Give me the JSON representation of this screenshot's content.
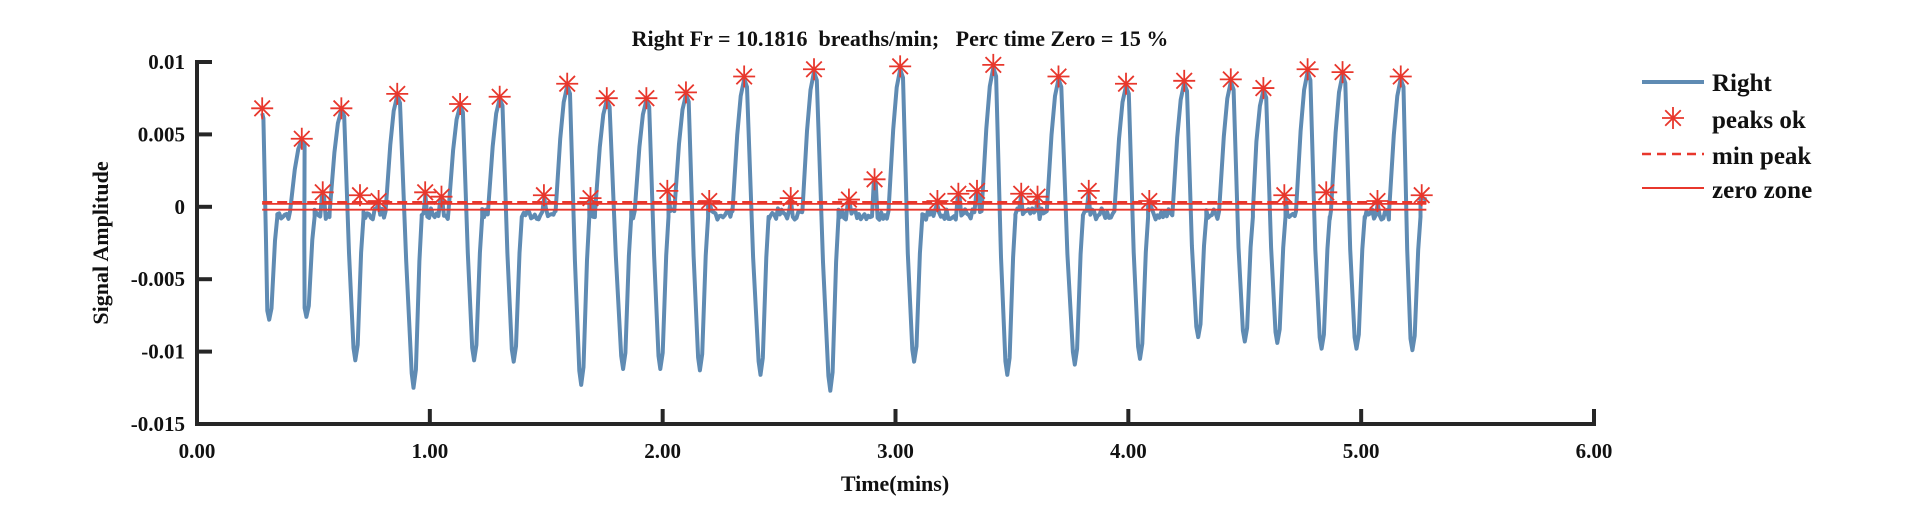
{
  "chart_data": {
    "type": "line",
    "title": "Right Fr = 10.1816  breaths/min;   Perc time Zero = 15 %",
    "xlabel": "Time(mins)",
    "ylabel": "Signal Amplitude",
    "xlim": [
      0,
      6
    ],
    "ylim": [
      -0.015,
      0.01
    ],
    "xticks": [
      0,
      1,
      2,
      3,
      4,
      5,
      6
    ],
    "xtick_labels": [
      "0.00",
      "1.00",
      "2.00",
      "3.00",
      "4.00",
      "5.00",
      "6.00"
    ],
    "yticks": [
      0.01,
      0.005,
      0,
      -0.005,
      -0.01,
      -0.015
    ],
    "ytick_labels": [
      "0.01",
      "0.005",
      "0",
      "-0.005",
      "-0.01",
      "-0.015"
    ],
    "grid": false,
    "legend_position": "outside-right-top",
    "legend": [
      "Right",
      "peaks ok",
      "min peak",
      "zero zone"
    ],
    "colors": {
      "signal": "#5f8bb3",
      "peaks": "#e8372c",
      "min_peak": "#e8372c",
      "zero_zone": "#e8372c",
      "axis": "#262626"
    },
    "series": [
      {
        "name": "Right",
        "type": "line",
        "t_start": 0.28,
        "t_end": 5.28,
        "baseline": -0.0005,
        "cycles_peak_trough": [
          [
            0.28,
            0.0068,
            0.31,
            -0.0078
          ],
          [
            0.45,
            0.0047,
            0.47,
            -0.0076
          ],
          [
            0.62,
            0.0068,
            0.68,
            -0.0106
          ],
          [
            0.86,
            0.0078,
            0.93,
            -0.0125
          ],
          [
            1.13,
            0.0071,
            1.19,
            -0.0106
          ],
          [
            1.3,
            0.0076,
            1.36,
            -0.0107
          ],
          [
            1.59,
            0.0085,
            1.65,
            -0.0123
          ],
          [
            1.76,
            0.0075,
            1.83,
            -0.0112
          ],
          [
            1.93,
            0.0075,
            1.99,
            -0.0112
          ],
          [
            2.1,
            0.0079,
            2.16,
            -0.0113
          ],
          [
            2.35,
            0.009,
            2.42,
            -0.0116
          ],
          [
            2.65,
            0.0095,
            2.72,
            -0.0127
          ],
          [
            3.02,
            0.0097,
            3.08,
            -0.0107
          ],
          [
            3.42,
            0.0098,
            3.48,
            -0.0116
          ],
          [
            3.7,
            0.009,
            3.77,
            -0.0109
          ],
          [
            3.99,
            0.0085,
            4.05,
            -0.0105
          ],
          [
            4.24,
            0.0087,
            4.3,
            -0.009
          ],
          [
            4.44,
            0.0088,
            4.5,
            -0.0093
          ],
          [
            4.58,
            0.0082,
            4.64,
            -0.0094
          ],
          [
            4.77,
            0.0095,
            4.83,
            -0.0098
          ],
          [
            4.92,
            0.0093,
            4.98,
            -0.0098
          ],
          [
            5.17,
            0.009,
            5.22,
            -0.0099
          ]
        ]
      },
      {
        "name": "peaks ok",
        "type": "scatter",
        "x": [
          0.28,
          0.45,
          0.54,
          0.62,
          0.7,
          0.78,
          0.86,
          0.98,
          1.05,
          1.13,
          1.3,
          1.49,
          1.59,
          1.69,
          1.76,
          1.93,
          2.02,
          2.1,
          2.2,
          2.35,
          2.55,
          2.65,
          2.8,
          2.91,
          3.02,
          3.18,
          3.27,
          3.35,
          3.42,
          3.54,
          3.61,
          3.7,
          3.83,
          3.99,
          4.09,
          4.24,
          4.44,
          4.58,
          4.67,
          4.77,
          4.85,
          4.92,
          5.07,
          5.17,
          5.26
        ],
        "y": [
          0.0068,
          0.0047,
          0.001,
          0.0068,
          0.0008,
          0.0004,
          0.0078,
          0.001,
          0.0007,
          0.0071,
          0.0076,
          0.0008,
          0.0085,
          0.0006,
          0.0075,
          0.0075,
          0.0011,
          0.0079,
          0.0004,
          0.009,
          0.0006,
          0.0095,
          0.0005,
          0.0019,
          0.0097,
          0.0004,
          0.0009,
          0.0011,
          0.0098,
          0.0009,
          0.0007,
          0.009,
          0.0011,
          0.0085,
          0.0004,
          0.0087,
          0.0088,
          0.0082,
          0.0008,
          0.0095,
          0.001,
          0.0093,
          0.0004,
          0.009,
          0.0008
        ]
      },
      {
        "name": "min peak",
        "type": "hline-dashed",
        "y": 0.0003,
        "x": [
          0.28,
          5.28
        ]
      },
      {
        "name": "zero zone",
        "type": "hline-pair",
        "y": [
          0.0002,
          -0.0002
        ],
        "x": [
          0.28,
          5.28
        ]
      }
    ]
  }
}
